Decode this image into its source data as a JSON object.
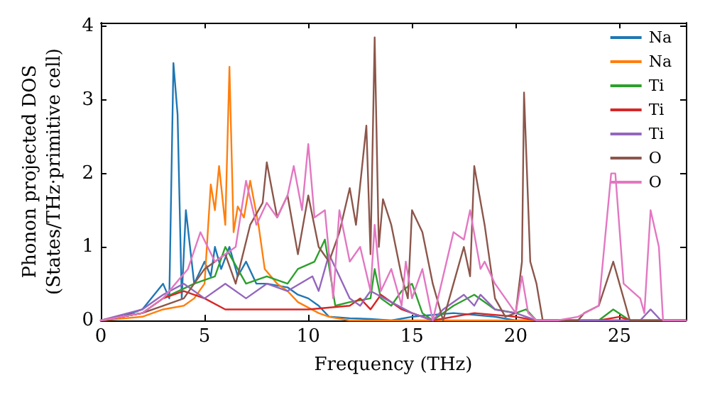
{
  "chart_data": {
    "type": "line",
    "xlabel": "Frequency (THz)",
    "ylabel": "Phonon projected DOS\n(States/THz·primitive cell)",
    "xlim": [
      0,
      28.2
    ],
    "xticks": [
      0,
      5,
      10,
      15,
      20,
      25
    ],
    "ylim": [
      0,
      4.05
    ],
    "yticks": [
      0,
      1,
      2,
      3,
      4
    ],
    "grid": false,
    "legend": "top right",
    "series": [
      {
        "name": "Na",
        "color": "#1f77b4",
        "x": [
          0,
          1,
          2,
          3,
          3.3,
          3.5,
          3.7,
          3.9,
          4.1,
          4.5,
          5,
          5.3,
          5.5,
          5.8,
          6.2,
          6.6,
          7,
          7.5,
          8,
          9,
          9.5,
          10,
          10.5,
          11,
          12,
          13,
          14,
          15,
          17,
          19,
          20,
          28.2
        ],
        "values": [
          0,
          0.05,
          0.15,
          0.5,
          0.3,
          3.5,
          2.8,
          0.3,
          1.5,
          0.5,
          0.8,
          0.6,
          1.0,
          0.7,
          1.0,
          0.6,
          0.8,
          0.5,
          0.5,
          0.45,
          0.35,
          0.3,
          0.2,
          0.05,
          0.03,
          0.02,
          0,
          0.05,
          0.1,
          0.05,
          0,
          0
        ]
      },
      {
        "name": "Na",
        "color": "#ff7f0e",
        "x": [
          0,
          2,
          3,
          4,
          4.5,
          5,
          5.3,
          5.5,
          5.7,
          6.0,
          6.2,
          6.4,
          6.6,
          6.9,
          7.2,
          7.6,
          7.9,
          8.5,
          9,
          9.5,
          10.5,
          11,
          12,
          28.2
        ],
        "values": [
          0,
          0.05,
          0.15,
          0.2,
          0.3,
          0.5,
          1.85,
          1.5,
          2.1,
          1.3,
          3.45,
          1.2,
          1.55,
          1.4,
          1.9,
          1.3,
          0.7,
          0.5,
          0.4,
          0.25,
          0.1,
          0.05,
          0,
          0
        ]
      },
      {
        "name": "Ti",
        "color": "#2ca02c",
        "x": [
          0,
          2,
          3,
          4.5,
          5.5,
          6,
          7,
          8,
          9,
          9.5,
          10.3,
          10.8,
          11.3,
          12,
          13,
          13.2,
          13.5,
          14,
          14.5,
          15,
          15.5,
          16,
          17,
          18,
          19,
          20,
          20.5,
          21,
          24,
          24.7,
          25.5,
          28.2
        ],
        "values": [
          0,
          0.1,
          0.3,
          0.5,
          0.6,
          1.0,
          0.5,
          0.6,
          0.5,
          0.7,
          0.8,
          1.1,
          0.2,
          0.25,
          0.3,
          0.7,
          0.3,
          0.2,
          0.4,
          0.5,
          0.1,
          0,
          0.2,
          0.35,
          0.15,
          0.1,
          0.15,
          0,
          0,
          0.15,
          0,
          0
        ]
      },
      {
        "name": "Ti",
        "color": "#d62728",
        "x": [
          0,
          2,
          3,
          4,
          5,
          6,
          8,
          10,
          12,
          12.5,
          13,
          13.5,
          14.5,
          15,
          16,
          18,
          20,
          21,
          24,
          25,
          25.5,
          28.2
        ],
        "values": [
          0,
          0.1,
          0.3,
          0.4,
          0.3,
          0.15,
          0.15,
          0.15,
          0.2,
          0.3,
          0.15,
          0.35,
          0.15,
          0.1,
          0,
          0.1,
          0.05,
          0,
          0,
          0.05,
          0,
          0
        ]
      },
      {
        "name": "Ti",
        "color": "#9467bd",
        "x": [
          0,
          2,
          3,
          4,
          5,
          6,
          7,
          8,
          9,
          10.2,
          10.5,
          11,
          11.5,
          12,
          12.5,
          13,
          14,
          15,
          16,
          16.5,
          17.5,
          18,
          18.3,
          19,
          20,
          21,
          26,
          26.5,
          27,
          28.2
        ],
        "values": [
          0,
          0.15,
          0.35,
          0.5,
          0.3,
          0.5,
          0.3,
          0.5,
          0.4,
          0.6,
          0.4,
          0.9,
          0.6,
          0.3,
          0.2,
          0.4,
          0.25,
          0.1,
          0,
          0.15,
          0.35,
          0.2,
          0.35,
          0.15,
          0.1,
          0,
          0,
          0.15,
          0,
          0
        ]
      },
      {
        "name": "O",
        "color": "#8c564b",
        "x": [
          0,
          2,
          3,
          4,
          5,
          6,
          6.5,
          7.2,
          7.8,
          8,
          8.5,
          9,
          9.5,
          10,
          10.5,
          11,
          11.5,
          12,
          12.3,
          12.8,
          13,
          13.2,
          13.4,
          13.6,
          14,
          14.5,
          14.8,
          15,
          15.5,
          16,
          16.5,
          17,
          17.5,
          17.8,
          18,
          18.5,
          19,
          19.5,
          20,
          20.3,
          20.4,
          20.7,
          21,
          21.3,
          23,
          23.3,
          24,
          24.7,
          25,
          25.5,
          28.2
        ],
        "values": [
          0,
          0.1,
          0.2,
          0.3,
          0.7,
          0.9,
          0.5,
          1.3,
          1.6,
          2.15,
          1.4,
          1.7,
          0.9,
          1.7,
          1.0,
          0.8,
          1.2,
          1.8,
          1.3,
          2.65,
          0.9,
          3.85,
          1.0,
          1.65,
          1.3,
          0.6,
          0.3,
          1.5,
          1.2,
          0.5,
          0,
          0.5,
          1.0,
          0.6,
          2.1,
          1.3,
          0.3,
          0.05,
          0.1,
          0.8,
          3.1,
          0.8,
          0.5,
          0,
          0,
          0.1,
          0.2,
          0.8,
          0.5,
          0,
          0
        ]
      },
      {
        "name": "O",
        "color": "#e377c2",
        "x": [
          0,
          2,
          3,
          4.2,
          4.8,
          5.5,
          6.5,
          7.0,
          7.5,
          8,
          8.5,
          9,
          9.3,
          9.7,
          10.0,
          10.3,
          10.8,
          11.2,
          11.5,
          12.0,
          12.5,
          13.0,
          13.2,
          13.5,
          14.0,
          14.5,
          14.7,
          15,
          15.5,
          16,
          16.5,
          17,
          17.5,
          17.8,
          18.3,
          18.5,
          19,
          19.5,
          20,
          20.3,
          20.6,
          21,
          22,
          23,
          24,
          24.6,
          24.8,
          25.2,
          26.0,
          26.2,
          26.5,
          26.9,
          27.1,
          28.2
        ],
        "values": [
          0,
          0.1,
          0.3,
          0.7,
          1.2,
          0.8,
          1.0,
          1.9,
          1.3,
          1.6,
          1.4,
          1.7,
          2.1,
          1.5,
          2.4,
          1.4,
          1.5,
          0.3,
          1.5,
          0.8,
          1.0,
          0.4,
          1.3,
          0.4,
          0.7,
          0.2,
          0.8,
          0.3,
          0.7,
          0,
          0.6,
          1.2,
          1.1,
          1.5,
          0.7,
          0.8,
          0.5,
          0.3,
          0.1,
          0.6,
          0.1,
          0,
          0,
          0.05,
          0.2,
          2.0,
          2.0,
          0.5,
          0.3,
          0.1,
          1.5,
          1.0,
          0,
          0
        ]
      }
    ]
  }
}
